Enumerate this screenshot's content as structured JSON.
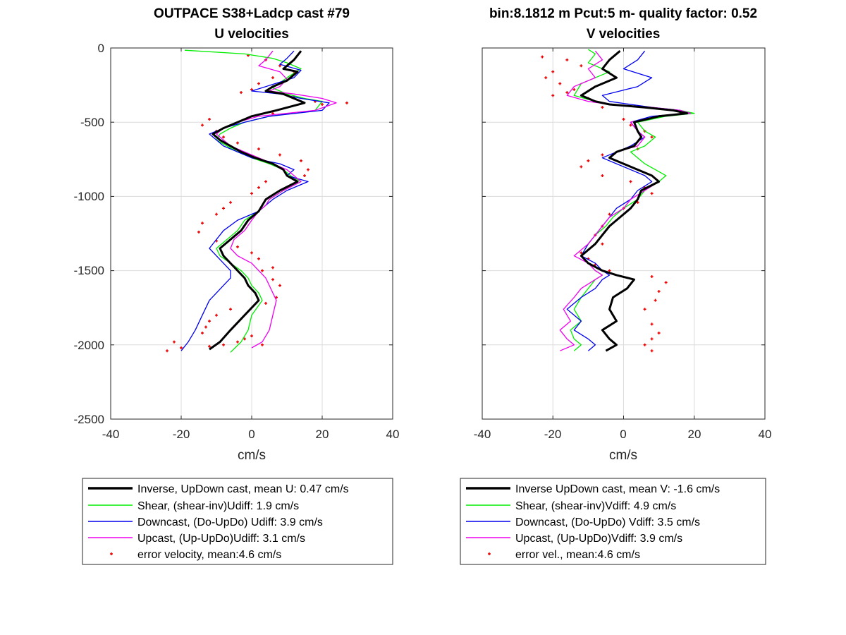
{
  "chart_data": [
    {
      "type": "line",
      "title": "OUTPACE S38+Ladcp cast #79",
      "subtitle": "U velocities",
      "xlabel": "cm/s",
      "ylabel": "",
      "xlim": [
        -40,
        40
      ],
      "ylim": [
        -2500,
        0
      ],
      "xticks": [
        "-40",
        "-20",
        "0",
        "20",
        "40"
      ],
      "yticks": [
        "0",
        "-500",
        "-1000",
        "-1500",
        "-2000",
        "-2500"
      ],
      "grid": true,
      "legend_position": "bottom",
      "series": [
        {
          "name": "Inverse, UpDown cast, mean U:  0.47 cm/s",
          "color": "#000000",
          "style": "thick-line",
          "x": [
            14,
            12,
            9,
            13,
            10,
            6,
            4,
            9,
            12,
            15,
            7,
            0,
            -4,
            -8,
            -11,
            -9,
            -6,
            -3,
            1,
            6,
            9,
            10,
            13,
            8,
            4,
            3,
            2,
            -1,
            -3,
            -6,
            -9,
            -8,
            -6,
            -4,
            -2,
            -1,
            1,
            2,
            -2,
            -6,
            -9,
            -12
          ],
          "y": [
            -20,
            -80,
            -140,
            -160,
            -220,
            -260,
            -290,
            -310,
            -340,
            -370,
            -420,
            -460,
            -500,
            -540,
            -580,
            -620,
            -660,
            -700,
            -740,
            -780,
            -820,
            -860,
            -900,
            -960,
            -1020,
            -1060,
            -1100,
            -1160,
            -1230,
            -1290,
            -1350,
            -1400,
            -1450,
            -1500,
            -1550,
            -1600,
            -1650,
            -1700,
            -1800,
            -1900,
            -1980,
            -2030
          ]
        },
        {
          "name": "Shear, (shear-inv)Udiff:  1.9 cm/s",
          "color": "#00ee00",
          "style": "line",
          "x": [
            -19,
            -2,
            6,
            10,
            14,
            10,
            6,
            10,
            15,
            20,
            18,
            5,
            -2,
            -6,
            -9,
            -10,
            -7,
            -4,
            0,
            5,
            9,
            11,
            14,
            9,
            5,
            4,
            2,
            -2,
            -4,
            -7,
            -10,
            -9,
            -6,
            -3,
            -1,
            0,
            2,
            3,
            0,
            -1,
            -3,
            -6
          ],
          "y": [
            -15,
            -40,
            -70,
            -100,
            -140,
            -200,
            -270,
            -310,
            -340,
            -360,
            -420,
            -460,
            -500,
            -540,
            -580,
            -620,
            -660,
            -700,
            -740,
            -780,
            -820,
            -860,
            -900,
            -960,
            -1020,
            -1060,
            -1100,
            -1160,
            -1230,
            -1290,
            -1350,
            -1400,
            -1450,
            -1500,
            -1550,
            -1600,
            -1650,
            -1700,
            -1800,
            -1900,
            -1980,
            -2050
          ]
        },
        {
          "name": "Downcast, (Do-UpDo) Udiff:  3.9 cm/s",
          "color": "#0000ee",
          "style": "line",
          "x": [
            12,
            10,
            8,
            14,
            12,
            4,
            0,
            8,
            14,
            22,
            20,
            5,
            -2,
            -8,
            -12,
            -10,
            -8,
            -4,
            0,
            8,
            12,
            10,
            16,
            10,
            6,
            4,
            2,
            -4,
            -8,
            -10,
            -12,
            -10,
            -8,
            -6,
            -6,
            -8,
            -10,
            -12,
            -14,
            -16,
            -18,
            -20
          ],
          "y": [
            -20,
            -70,
            -110,
            -150,
            -200,
            -260,
            -290,
            -310,
            -340,
            -370,
            -420,
            -460,
            -500,
            -540,
            -580,
            -620,
            -660,
            -700,
            -740,
            -780,
            -820,
            -860,
            -900,
            -960,
            -1020,
            -1060,
            -1100,
            -1160,
            -1230,
            -1290,
            -1350,
            -1400,
            -1450,
            -1500,
            -1550,
            -1600,
            -1650,
            -1700,
            -1800,
            -1900,
            -1980,
            -2040
          ]
        },
        {
          "name": "Upcast, (Up-UpDo)Udiff:  3.1 cm/s",
          "color": "#ee00ee",
          "style": "line",
          "x": [
            6,
            4,
            2,
            8,
            10,
            8,
            5,
            12,
            20,
            24,
            18,
            2,
            -4,
            -8,
            -10,
            -8,
            -6,
            -2,
            2,
            6,
            10,
            12,
            14,
            9,
            5,
            4,
            2,
            0,
            -2,
            -5,
            -6,
            -4,
            0,
            2,
            4,
            5,
            6,
            7,
            6,
            5,
            3,
            0
          ],
          "y": [
            -20,
            -80,
            -120,
            -160,
            -210,
            -260,
            -290,
            -310,
            -340,
            -370,
            -420,
            -460,
            -500,
            -540,
            -580,
            -620,
            -660,
            -700,
            -740,
            -780,
            -820,
            -860,
            -900,
            -960,
            -1020,
            -1060,
            -1100,
            -1160,
            -1230,
            -1290,
            -1350,
            -1400,
            -1450,
            -1500,
            -1550,
            -1600,
            -1650,
            -1700,
            -1800,
            -1900,
            -1980,
            -2020
          ]
        },
        {
          "name": "error velocity, mean:4.6 cm/s",
          "color": "#ee0000",
          "style": "dots",
          "x": [
            -1,
            4,
            8,
            12,
            6,
            2,
            0,
            -3,
            12,
            18,
            27,
            20,
            6,
            -12,
            -14,
            -10,
            -8,
            -4,
            2,
            8,
            14,
            16,
            15,
            4,
            2,
            0,
            -6,
            -8,
            -10,
            -14,
            -15,
            -10,
            -4,
            0,
            2,
            6,
            3,
            6,
            8,
            7,
            4,
            -6,
            -10,
            -12,
            -13,
            -14,
            -22,
            -24,
            -20,
            -12,
            -8,
            -4,
            -2,
            0,
            3
          ],
          "y": [
            -50,
            -80,
            -120,
            -160,
            -200,
            -240,
            -280,
            -300,
            -330,
            -360,
            -370,
            -380,
            -440,
            -480,
            -520,
            -560,
            -600,
            -640,
            -680,
            -720,
            -760,
            -820,
            -860,
            -900,
            -940,
            -980,
            -1040,
            -1080,
            -1120,
            -1180,
            -1240,
            -1300,
            -1340,
            -1380,
            -1420,
            -1480,
            -1500,
            -1560,
            -1600,
            -1680,
            -1720,
            -1760,
            -1800,
            -1840,
            -1880,
            -1920,
            -1980,
            -2040,
            -2020,
            -2010,
            -2000,
            -1980,
            -1960,
            -1940,
            -2000
          ]
        }
      ]
    },
    {
      "type": "line",
      "title": "bin:8.1812 m  Pcut:5 m- quality factor:  0.52",
      "subtitle": "V velocities",
      "xlabel": "cm/s",
      "ylabel": "",
      "xlim": [
        -40,
        40
      ],
      "ylim": [
        -2500,
        0
      ],
      "xticks": [
        "-40",
        "-20",
        "0",
        "20",
        "40"
      ],
      "yticks": [],
      "grid": true,
      "legend_position": "bottom",
      "series": [
        {
          "name": "Inverse UpDown cast, mean V:  -1.6 cm/s",
          "color": "#000000",
          "style": "thick-line",
          "x": [
            -1,
            -4,
            -6,
            -2,
            -8,
            -12,
            -8,
            -4,
            6,
            14,
            18,
            10,
            3,
            4,
            5,
            3,
            -2,
            -4,
            0,
            8,
            10,
            5,
            4,
            2,
            -1,
            -4,
            -6,
            -8,
            -12,
            -10,
            -6,
            -2,
            3,
            1,
            -3,
            -4,
            -2,
            -6,
            -4,
            -2,
            -5
          ],
          "y": [
            -20,
            -80,
            -140,
            -200,
            -260,
            -320,
            -360,
            -380,
            -400,
            -420,
            -440,
            -460,
            -500,
            -560,
            -600,
            -660,
            -700,
            -740,
            -780,
            -860,
            -900,
            -960,
            -1020,
            -1080,
            -1140,
            -1200,
            -1260,
            -1320,
            -1400,
            -1450,
            -1500,
            -1530,
            -1560,
            -1620,
            -1680,
            -1760,
            -1840,
            -1900,
            -1960,
            -2000,
            -2040
          ]
        },
        {
          "name": "Shear, (shear-inv)Vdiff:  4.9 cm/s",
          "color": "#00ee00",
          "style": "line",
          "x": [
            -10,
            -8,
            -10,
            -4,
            -12,
            -14,
            -8,
            -4,
            6,
            16,
            20,
            12,
            4,
            6,
            9,
            6,
            2,
            4,
            6,
            12,
            10,
            6,
            4,
            0,
            -3,
            -5,
            -8,
            -10,
            -12,
            -10,
            -8,
            -6,
            -8,
            -10,
            -12,
            -14,
            -12,
            -15,
            -14,
            -12,
            -14
          ],
          "y": [
            -10,
            -40,
            -100,
            -160,
            -240,
            -320,
            -360,
            -380,
            -400,
            -420,
            -440,
            -460,
            -500,
            -560,
            -600,
            -660,
            -700,
            -740,
            -780,
            -860,
            -900,
            -960,
            -1020,
            -1080,
            -1140,
            -1200,
            -1260,
            -1320,
            -1400,
            -1450,
            -1500,
            -1530,
            -1560,
            -1620,
            -1680,
            -1760,
            -1840,
            -1900,
            -1960,
            -2000,
            -2040
          ]
        },
        {
          "name": "Downcast, (Do-UpDo) Vdiff:  3.5 cm/s",
          "color": "#0000ee",
          "style": "line",
          "x": [
            6,
            4,
            0,
            8,
            4,
            -6,
            -4,
            2,
            8,
            16,
            18,
            8,
            2,
            4,
            6,
            2,
            -2,
            -6,
            -2,
            6,
            8,
            4,
            2,
            -2,
            -4,
            -6,
            -8,
            -10,
            -12,
            -8,
            -6,
            -4,
            -6,
            -8,
            -12,
            -16,
            -12,
            -14,
            -10,
            -8,
            -10
          ],
          "y": [
            -20,
            -80,
            -140,
            -200,
            -260,
            -320,
            -360,
            -380,
            -400,
            -420,
            -440,
            -460,
            -500,
            -560,
            -600,
            -660,
            -700,
            -740,
            -780,
            -860,
            -900,
            -960,
            -1020,
            -1080,
            -1140,
            -1200,
            -1260,
            -1320,
            -1400,
            -1450,
            -1500,
            -1530,
            -1560,
            -1620,
            -1680,
            -1760,
            -1840,
            -1900,
            -1960,
            -2000,
            -2040
          ]
        },
        {
          "name": "Upcast, (Up-UpDo)Vdiff:  3.9 cm/s",
          "color": "#ee00ee",
          "style": "line",
          "x": [
            -8,
            -6,
            -10,
            -8,
            -14,
            -16,
            -10,
            -4,
            8,
            16,
            19,
            10,
            2,
            4,
            6,
            4,
            -2,
            -4,
            0,
            8,
            10,
            6,
            2,
            0,
            -4,
            -6,
            -8,
            -10,
            -14,
            -10,
            -8,
            -6,
            -8,
            -12,
            -14,
            -17,
            -15,
            -18,
            -16,
            -14,
            -18
          ],
          "y": [
            -20,
            -80,
            -140,
            -200,
            -260,
            -320,
            -360,
            -380,
            -400,
            -420,
            -440,
            -460,
            -500,
            -560,
            -600,
            -660,
            -700,
            -740,
            -780,
            -860,
            -900,
            -960,
            -1020,
            -1080,
            -1140,
            -1200,
            -1260,
            -1320,
            -1400,
            -1450,
            -1500,
            -1530,
            -1560,
            -1620,
            -1680,
            -1760,
            -1840,
            -1900,
            -1960,
            -2000,
            -2040
          ]
        },
        {
          "name": "error vel., mean:4.6 cm/s",
          "color": "#ee0000",
          "style": "dots",
          "x": [
            -23,
            -16,
            -12,
            -20,
            -22,
            -18,
            -14,
            -16,
            -20,
            -10,
            -6,
            0,
            2,
            6,
            8,
            4,
            -6,
            -10,
            -12,
            -6,
            2,
            6,
            8,
            4,
            0,
            -4,
            -6,
            -8,
            -6,
            -12,
            -10,
            -8,
            -4,
            8,
            12,
            10,
            9,
            6,
            8,
            10,
            8,
            6,
            8
          ],
          "y": [
            -60,
            -80,
            -120,
            -160,
            -200,
            -240,
            -280,
            -300,
            -320,
            -340,
            -400,
            -480,
            -520,
            -560,
            -600,
            -680,
            -720,
            -760,
            -800,
            -860,
            -900,
            -940,
            -980,
            -1040,
            -1080,
            -1120,
            -1200,
            -1260,
            -1320,
            -1380,
            -1420,
            -1460,
            -1500,
            -1540,
            -1580,
            -1640,
            -1700,
            -1760,
            -1860,
            -1920,
            -1960,
            -2000,
            -2040
          ]
        }
      ]
    }
  ]
}
